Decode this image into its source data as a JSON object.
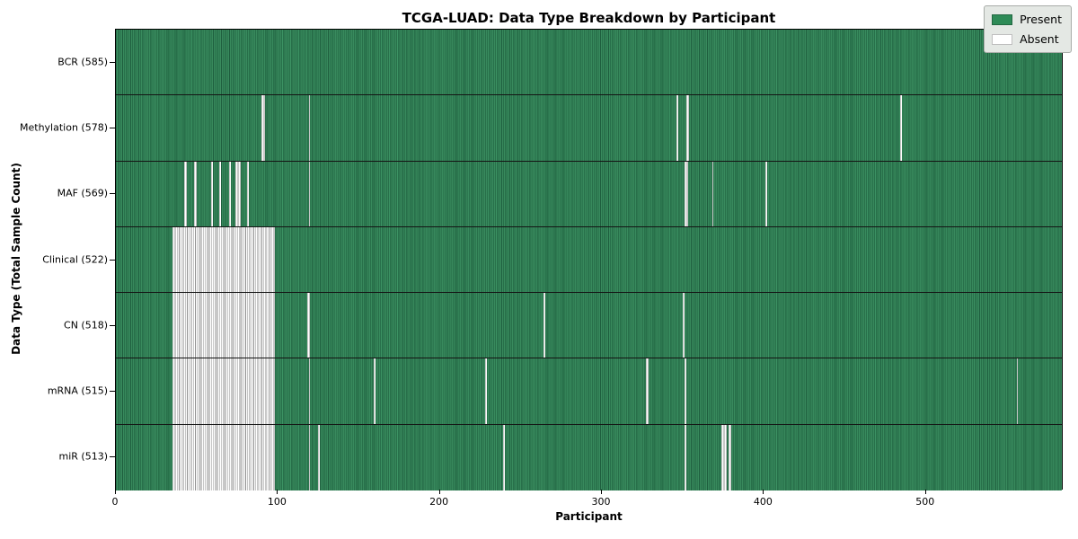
{
  "chart_data": {
    "type": "heatmap",
    "title": "TCGA-LUAD: Data Type Breakdown by Participant",
    "xlabel": "Participant",
    "ylabel": "Data Type (Total Sample Count)",
    "x_range": [
      0,
      585
    ],
    "x_ticks": [
      0,
      100,
      200,
      300,
      400,
      500
    ],
    "total_participants": 585,
    "colors": {
      "present": "#2e8b57",
      "present_edge": "#1e5e3e",
      "absent": "#ffffff",
      "absent_edge": "#8f8f8f"
    },
    "legend": {
      "position": "upper right",
      "entries": [
        {
          "label": "Present",
          "color": "#2e8b57"
        },
        {
          "label": "Absent",
          "color": "#ffffff"
        }
      ]
    },
    "rows": [
      {
        "label": "BCR (585)",
        "data_type": "BCR",
        "present_count": 585,
        "absent_segments": []
      },
      {
        "label": "Methylation (578)",
        "data_type": "Methylation",
        "present_count": 578,
        "absent_segments": [
          {
            "start": 90,
            "count": 2
          },
          {
            "start": 119,
            "count": 1
          },
          {
            "start": 346,
            "count": 1
          },
          {
            "start": 352,
            "count": 2
          },
          {
            "start": 484,
            "count": 1
          }
        ]
      },
      {
        "label": "MAF (569)",
        "data_type": "MAF",
        "present_count": 569,
        "absent_segments": [
          {
            "start": 42,
            "count": 2
          },
          {
            "start": 48,
            "count": 2
          },
          {
            "start": 59,
            "count": 1
          },
          {
            "start": 64,
            "count": 1
          },
          {
            "start": 70,
            "count": 1
          },
          {
            "start": 74,
            "count": 3
          },
          {
            "start": 81,
            "count": 1
          },
          {
            "start": 119,
            "count": 1
          },
          {
            "start": 351,
            "count": 2
          },
          {
            "start": 368,
            "count": 1
          },
          {
            "start": 401,
            "count": 1
          }
        ]
      },
      {
        "label": "Clinical (522)",
        "data_type": "Clinical",
        "present_count": 522,
        "absent_segments": [
          {
            "start": 35,
            "count": 63
          }
        ]
      },
      {
        "label": "CN (518)",
        "data_type": "CN",
        "present_count": 518,
        "absent_segments": [
          {
            "start": 35,
            "count": 63
          },
          {
            "start": 118,
            "count": 2
          },
          {
            "start": 264,
            "count": 1
          },
          {
            "start": 350,
            "count": 1
          }
        ]
      },
      {
        "label": "mRNA (515)",
        "data_type": "mRNA",
        "present_count": 515,
        "absent_segments": [
          {
            "start": 35,
            "count": 63
          },
          {
            "start": 119,
            "count": 1
          },
          {
            "start": 159,
            "count": 1
          },
          {
            "start": 228,
            "count": 1
          },
          {
            "start": 327,
            "count": 2
          },
          {
            "start": 351,
            "count": 1
          },
          {
            "start": 556,
            "count": 1
          }
        ]
      },
      {
        "label": "miR (513)",
        "data_type": "miR",
        "present_count": 513,
        "absent_segments": [
          {
            "start": 35,
            "count": 63
          },
          {
            "start": 119,
            "count": 1
          },
          {
            "start": 125,
            "count": 1
          },
          {
            "start": 239,
            "count": 1
          },
          {
            "start": 351,
            "count": 1
          },
          {
            "start": 374,
            "count": 3
          },
          {
            "start": 378,
            "count": 2
          }
        ]
      }
    ]
  }
}
